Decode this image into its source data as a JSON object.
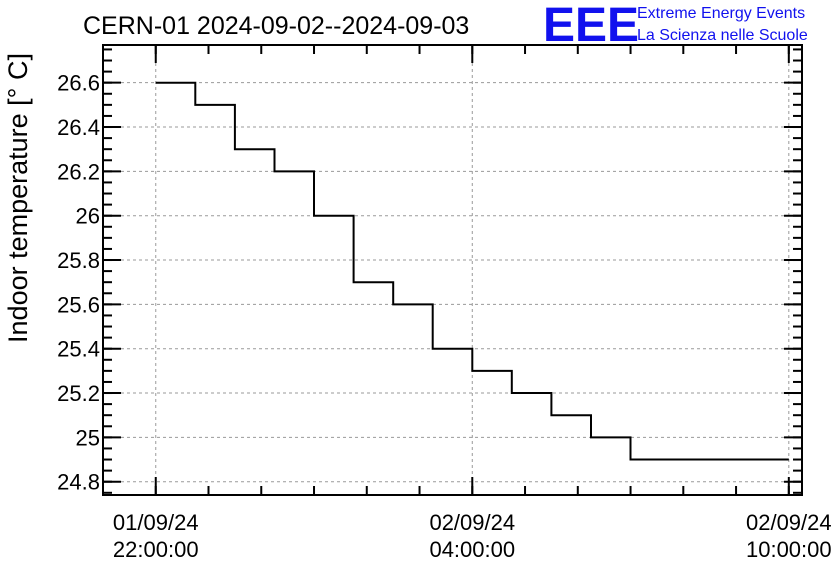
{
  "logo": {
    "mark": "EEE",
    "line1": "Extreme Energy Events",
    "line2": "La Scienza nelle Scuole",
    "color": "#1111ee"
  },
  "chart_data": {
    "type": "line",
    "step": true,
    "title": "CERN-01 2024-09-02--2024-09-03",
    "ylabel": "Indoor temperature [° C]",
    "xlabel": "",
    "ylim": [
      24.74,
      26.77
    ],
    "y_ticks": [
      "26.6",
      "26.4",
      "26.2",
      "26",
      "25.8",
      "25.6",
      "25.4",
      "25.2",
      "25",
      "24.8"
    ],
    "x_ticks": [
      {
        "date": "01/09/24",
        "time": "22:00:00"
      },
      {
        "date": "02/09/24",
        "time": "04:00:00"
      },
      {
        "date": "02/09/24",
        "time": "10:00:00"
      }
    ],
    "xlim": [
      "2024-09-01 21:00",
      "2024-09-02 10:15"
    ],
    "grid": true,
    "series": [
      {
        "color": "#000000",
        "points": [
          {
            "x": "2024-09-01 22:00",
            "y": 26.6
          },
          {
            "x": "2024-09-01 22:45",
            "y": 26.5
          },
          {
            "x": "2024-09-01 23:30",
            "y": 26.3
          },
          {
            "x": "2024-09-02 00:15",
            "y": 26.2
          },
          {
            "x": "2024-09-02 01:00",
            "y": 26.0
          },
          {
            "x": "2024-09-02 01:45",
            "y": 25.7
          },
          {
            "x": "2024-09-02 02:30",
            "y": 25.6
          },
          {
            "x": "2024-09-02 03:15",
            "y": 25.4
          },
          {
            "x": "2024-09-02 04:00",
            "y": 25.3
          },
          {
            "x": "2024-09-02 04:45",
            "y": 25.2
          },
          {
            "x": "2024-09-02 05:30",
            "y": 25.1
          },
          {
            "x": "2024-09-02 06:15",
            "y": 25.0
          },
          {
            "x": "2024-09-02 07:00",
            "y": 24.9
          },
          {
            "x": "2024-09-02 10:00",
            "y": 24.9
          }
        ]
      }
    ]
  }
}
